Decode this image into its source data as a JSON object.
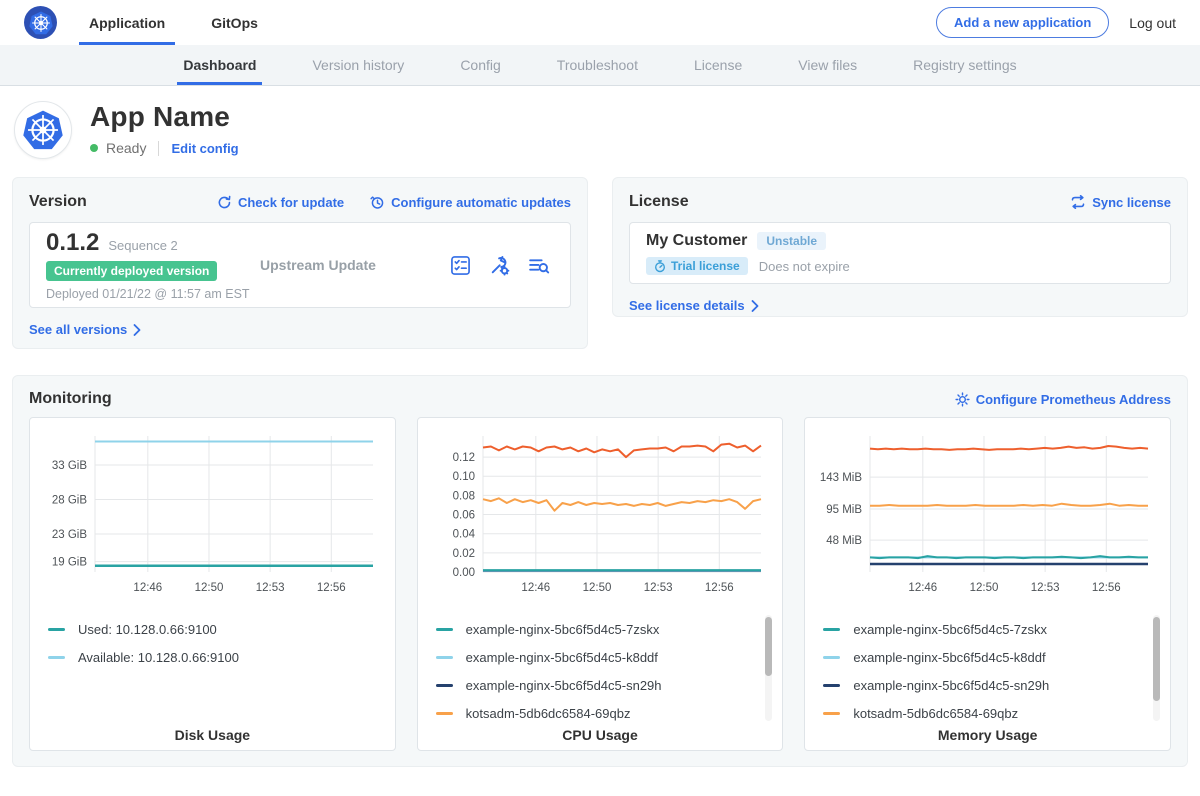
{
  "topbar": {
    "brand_icon": "kubernetes-logo",
    "tabs": [
      {
        "label": "Application",
        "active": true
      },
      {
        "label": "GitOps",
        "active": false
      }
    ],
    "add_application_label": "Add a new application",
    "logout_label": "Log out"
  },
  "subnav": {
    "items": [
      {
        "label": "Dashboard",
        "active": true
      },
      {
        "label": "Version history",
        "active": false
      },
      {
        "label": "Config",
        "active": false
      },
      {
        "label": "Troubleshoot",
        "active": false
      },
      {
        "label": "License",
        "active": false
      },
      {
        "label": "View files",
        "active": false
      },
      {
        "label": "Registry settings",
        "active": false
      }
    ]
  },
  "app_header": {
    "name": "App Name",
    "status_label": "Ready",
    "edit_config_label": "Edit config"
  },
  "version_card": {
    "title": "Version",
    "check_update_label": "Check for update",
    "configure_updates_label": "Configure automatic updates",
    "version_number": "0.1.2",
    "sequence_label": "Sequence 2",
    "deployed_badge": "Currently deployed version",
    "deployed_at": "Deployed 01/21/22 @ 11:57 am EST",
    "source_label": "Upstream Update",
    "see_all_label": "See all versions"
  },
  "license_card": {
    "title": "License",
    "sync_label": "Sync license",
    "customer_name": "My Customer",
    "channel_badge": "Unstable",
    "type_badge": "Trial license",
    "expiration_label": "Does not expire",
    "details_label": "See license details"
  },
  "monitoring": {
    "title": "Monitoring",
    "configure_label": "Configure Prometheus Address"
  },
  "colors": {
    "accent_blue": "#326de6",
    "kubernetes_blue": "#326ce5",
    "success_green": "#44bb66",
    "deployed_badge_green": "#47c490",
    "series_teal": "#29a3a3",
    "series_light_blue": "#8fd3ea",
    "series_navy": "#25416e",
    "series_orange": "#f8a14a",
    "series_red_orange": "#ee5f2d",
    "grid_gray": "#e5e7e9"
  },
  "chart_data": [
    {
      "type": "line",
      "title": "Disk Usage",
      "xlabel": "",
      "ylabel": "",
      "x_ticks": [
        "12:46",
        "12:50",
        "12:53",
        "12:56"
      ],
      "y_ticks": [
        {
          "label": "33 GiB",
          "value": 33
        },
        {
          "label": "28 GiB",
          "value": 28
        },
        {
          "label": "23 GiB",
          "value": 23
        },
        {
          "label": "19 GiB",
          "value": 19
        }
      ],
      "ylim": [
        17.5,
        37.2
      ],
      "grid": true,
      "legend_position": "bottom",
      "scrollbar": {
        "visible": false,
        "thumb_fraction": 0
      },
      "series": [
        {
          "name": "Available: 10.128.0.66:9100",
          "color": "#8fd3ea",
          "width": 2,
          "values": 36.4
        },
        {
          "name": "Used: 10.128.0.66:9100",
          "color": "#29a3a3",
          "width": 2.5,
          "values": 18.4
        }
      ],
      "legend": [
        {
          "label": "Used: 10.128.0.66:9100",
          "color": "#29a3a3"
        },
        {
          "label": "Available: 10.128.0.66:9100",
          "color": "#8fd3ea"
        }
      ]
    },
    {
      "type": "line",
      "title": "CPU Usage",
      "xlabel": "",
      "ylabel": "",
      "x_ticks": [
        "12:46",
        "12:50",
        "12:53",
        "12:56"
      ],
      "y_ticks": [
        {
          "label": "0.12",
          "value": 0.12
        },
        {
          "label": "0.10",
          "value": 0.1
        },
        {
          "label": "0.08",
          "value": 0.08
        },
        {
          "label": "0.06",
          "value": 0.06
        },
        {
          "label": "0.04",
          "value": 0.04
        },
        {
          "label": "0.02",
          "value": 0.02
        },
        {
          "label": "0.00",
          "value": 0.0
        }
      ],
      "ylim": [
        0,
        0.142
      ],
      "grid": true,
      "legend_position": "bottom",
      "scrollbar": {
        "visible": true,
        "thumb_fraction": 0.58
      },
      "series": [
        {
          "name": "example-nginx-5bc6f5d4c5-sn29h",
          "color": "#25416e",
          "width": 2,
          "values": 0.001
        },
        {
          "name": "example-nginx-5bc6f5d4c5-k8ddf",
          "color": "#8fd3ea",
          "width": 2,
          "values": 0.0015
        },
        {
          "name": "example-nginx-5bc6f5d4c5-7zskx",
          "color": "#29a3a3",
          "width": 2,
          "values": 0.002
        },
        {
          "name": "kotsadm-5db6dc6584-69qbz",
          "color": "#f8a14a",
          "width": 2,
          "values": [
            0.076,
            0.074,
            0.077,
            0.072,
            0.076,
            0.073,
            0.075,
            0.072,
            0.075,
            0.064,
            0.072,
            0.07,
            0.073,
            0.07,
            0.072,
            0.071,
            0.072,
            0.07,
            0.071,
            0.069,
            0.071,
            0.07,
            0.072,
            0.069,
            0.071,
            0.073,
            0.072,
            0.074,
            0.073,
            0.075,
            0.074,
            0.076,
            0.073,
            0.066,
            0.074,
            0.076
          ]
        },
        {
          "name": "",
          "color": "#ee5f2d",
          "width": 2,
          "values": [
            0.13,
            0.131,
            0.127,
            0.131,
            0.128,
            0.131,
            0.13,
            0.126,
            0.13,
            0.131,
            0.128,
            0.13,
            0.126,
            0.129,
            0.125,
            0.128,
            0.126,
            0.128,
            0.12,
            0.127,
            0.128,
            0.129,
            0.129,
            0.13,
            0.126,
            0.131,
            0.131,
            0.132,
            0.131,
            0.126,
            0.133,
            0.134,
            0.13,
            0.132,
            0.126,
            0.132
          ]
        }
      ],
      "legend": [
        {
          "label": "example-nginx-5bc6f5d4c5-7zskx",
          "color": "#29a3a3"
        },
        {
          "label": "example-nginx-5bc6f5d4c5-k8ddf",
          "color": "#8fd3ea"
        },
        {
          "label": "example-nginx-5bc6f5d4c5-sn29h",
          "color": "#25416e"
        },
        {
          "label": "kotsadm-5db6dc6584-69qbz",
          "color": "#f8a14a"
        }
      ]
    },
    {
      "type": "line",
      "title": "Memory Usage",
      "xlabel": "",
      "ylabel": "",
      "x_ticks": [
        "12:46",
        "12:50",
        "12:53",
        "12:56"
      ],
      "y_ticks": [
        {
          "label": "143 MiB",
          "value": 143
        },
        {
          "label": "95 MiB",
          "value": 95
        },
        {
          "label": "48 MiB",
          "value": 48
        }
      ],
      "ylim": [
        0,
        205
      ],
      "grid": true,
      "legend_position": "bottom",
      "scrollbar": {
        "visible": true,
        "thumb_fraction": 0.82
      },
      "series": [
        {
          "name": "example-nginx-5bc6f5d4c5-sn29h",
          "color": "#25416e",
          "width": 2.5,
          "values": 12
        },
        {
          "name": "example-nginx-5bc6f5d4c5-k8ddf",
          "color": "#8fd3ea",
          "width": 2,
          "values": 22
        },
        {
          "name": "example-nginx-5bc6f5d4c5-7zskx",
          "color": "#29a3a3",
          "width": 2,
          "values": [
            22,
            21,
            22,
            22,
            22,
            21,
            24,
            22,
            22,
            21,
            22,
            22,
            22,
            21,
            22,
            22,
            21,
            22,
            22,
            22,
            23,
            22,
            21,
            22,
            24,
            22,
            22,
            23,
            22,
            22
          ]
        },
        {
          "name": "kotsadm-5db6dc6584-69qbz",
          "color": "#f8a14a",
          "width": 2,
          "values": [
            100,
            100,
            101,
            100,
            100,
            100,
            100,
            101,
            100,
            100,
            100,
            101,
            100,
            100,
            100,
            100,
            101,
            100,
            101,
            100,
            103,
            101,
            100,
            100,
            101,
            103,
            100,
            101,
            100,
            100
          ]
        },
        {
          "name": "",
          "color": "#ee5f2d",
          "width": 2,
          "values": [
            186,
            185,
            186,
            185,
            186,
            185,
            185,
            186,
            185,
            185,
            184,
            185,
            185,
            186,
            185,
            184,
            185,
            185,
            185,
            186,
            185,
            186,
            187,
            186,
            187,
            189,
            187,
            188,
            186,
            187,
            190,
            189,
            187,
            186,
            187,
            186
          ]
        }
      ],
      "legend": [
        {
          "label": "example-nginx-5bc6f5d4c5-7zskx",
          "color": "#29a3a3"
        },
        {
          "label": "example-nginx-5bc6f5d4c5-k8ddf",
          "color": "#8fd3ea"
        },
        {
          "label": "example-nginx-5bc6f5d4c5-sn29h",
          "color": "#25416e"
        },
        {
          "label": "kotsadm-5db6dc6584-69qbz",
          "color": "#f8a14a"
        }
      ]
    }
  ]
}
